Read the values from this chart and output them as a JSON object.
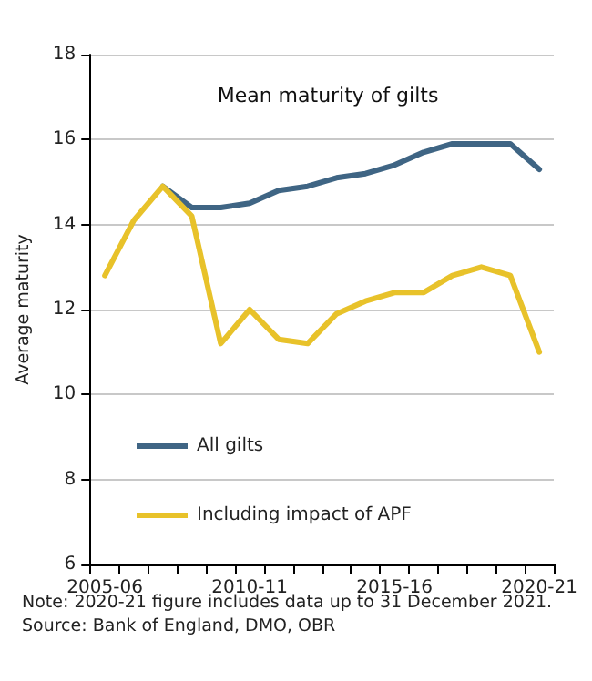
{
  "chart_data": {
    "type": "line",
    "title": "Mean maturity of gilts",
    "ylabel": "Average maturity",
    "categories": [
      "2005-06",
      null,
      null,
      null,
      null,
      "2010-11",
      null,
      null,
      null,
      null,
      "2015-16",
      null,
      null,
      null,
      null,
      "2020-21"
    ],
    "series": [
      {
        "name": "All gilts",
        "color": "#3f6584",
        "values": [
          null,
          null,
          14.9,
          14.4,
          14.4,
          14.5,
          14.8,
          14.9,
          15.1,
          15.2,
          15.4,
          15.7,
          15.9,
          15.9,
          15.9,
          15.3
        ]
      },
      {
        "name": "Including impact of APF",
        "color": "#e8c22a",
        "values": [
          12.8,
          14.1,
          14.9,
          14.2,
          11.2,
          12.0,
          11.3,
          11.2,
          11.9,
          12.2,
          12.4,
          12.4,
          12.8,
          13.0,
          12.8,
          11.0
        ]
      }
    ],
    "ylim": [
      6,
      18
    ],
    "yticks": [
      6,
      8,
      10,
      12,
      14,
      16,
      18
    ],
    "grid": "y",
    "legend": "bottom left",
    "marker": "none",
    "line_style": "solid",
    "annotations": [
      "Note: 2020-21 figure includes data up to 31 December 2021.",
      "Source: Bank of England, DMO, OBR"
    ]
  }
}
